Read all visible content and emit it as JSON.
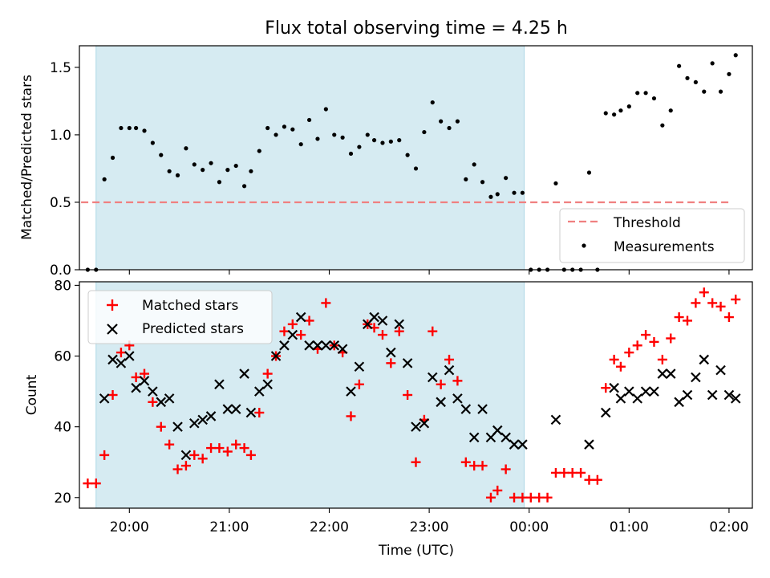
{
  "title": "Flux total observing time = 4.25 h",
  "shading": {
    "start": "19:40",
    "end": "23:57",
    "color": "#add8e6"
  },
  "x_axis": {
    "xlabel": "Time (UTC)",
    "ticks": [
      "20:00",
      "21:00",
      "22:00",
      "23:00",
      "00:00",
      "01:00",
      "02:00"
    ],
    "xlim": [
      "19:30",
      "02:14"
    ]
  },
  "chart_data": [
    {
      "type": "scatter",
      "ylabel": "Matched/Predicted stars",
      "ylim": [
        0,
        1.66
      ],
      "yticks": [
        "0.0",
        "0.5",
        "1.0",
        "1.5"
      ],
      "legend": {
        "placement": "bottom-right"
      },
      "threshold": {
        "name": "Threshold",
        "value": 0.5,
        "x_start": "19:31",
        "x_end": "02:00",
        "color": "#f08080"
      },
      "series": [
        {
          "name": "Measurements",
          "color": "#000000",
          "points": [
            [
              "19:35",
              0.0
            ],
            [
              "19:40",
              0.0
            ],
            [
              "19:45",
              0.67
            ],
            [
              "19:50",
              0.83
            ],
            [
              "19:55",
              1.05
            ],
            [
              "20:00",
              1.05
            ],
            [
              "20:04",
              1.05
            ],
            [
              "20:09",
              1.03
            ],
            [
              "20:14",
              0.94
            ],
            [
              "20:19",
              0.85
            ],
            [
              "20:24",
              0.73
            ],
            [
              "20:29",
              0.7
            ],
            [
              "20:34",
              0.9
            ],
            [
              "20:39",
              0.78
            ],
            [
              "20:44",
              0.74
            ],
            [
              "20:49",
              0.79
            ],
            [
              "20:54",
              0.65
            ],
            [
              "20:59",
              0.74
            ],
            [
              "21:04",
              0.77
            ],
            [
              "21:09",
              0.62
            ],
            [
              "21:13",
              0.73
            ],
            [
              "21:18",
              0.88
            ],
            [
              "21:23",
              1.05
            ],
            [
              "21:28",
              1.0
            ],
            [
              "21:33",
              1.06
            ],
            [
              "21:38",
              1.04
            ],
            [
              "21:43",
              0.93
            ],
            [
              "21:48",
              1.11
            ],
            [
              "21:53",
              0.97
            ],
            [
              "21:58",
              1.19
            ],
            [
              "22:03",
              1.0
            ],
            [
              "22:08",
              0.98
            ],
            [
              "22:13",
              0.86
            ],
            [
              "22:18",
              0.91
            ],
            [
              "22:23",
              1.0
            ],
            [
              "22:27",
              0.96
            ],
            [
              "22:32",
              0.94
            ],
            [
              "22:37",
              0.95
            ],
            [
              "22:42",
              0.96
            ],
            [
              "22:47",
              0.85
            ],
            [
              "22:52",
              0.75
            ],
            [
              "22:57",
              1.02
            ],
            [
              "23:02",
              1.24
            ],
            [
              "23:07",
              1.1
            ],
            [
              "23:12",
              1.05
            ],
            [
              "23:17",
              1.1
            ],
            [
              "23:22",
              0.67
            ],
            [
              "23:27",
              0.78
            ],
            [
              "23:32",
              0.65
            ],
            [
              "23:37",
              0.54
            ],
            [
              "23:41",
              0.56
            ],
            [
              "23:46",
              0.68
            ],
            [
              "23:51",
              0.57
            ],
            [
              "23:56",
              0.57
            ],
            [
              "00:01",
              0.0
            ],
            [
              "00:06",
              0.0
            ],
            [
              "00:11",
              0.0
            ],
            [
              "00:16",
              0.64
            ],
            [
              "00:21",
              0.0
            ],
            [
              "00:26",
              0.0
            ],
            [
              "00:31",
              0.0
            ],
            [
              "00:36",
              0.72
            ],
            [
              "00:41",
              0.0
            ],
            [
              "00:46",
              1.16
            ],
            [
              "00:51",
              1.15
            ],
            [
              "00:55",
              1.18
            ],
            [
              "01:00",
              1.21
            ],
            [
              "01:05",
              1.31
            ],
            [
              "01:10",
              1.31
            ],
            [
              "01:15",
              1.27
            ],
            [
              "01:20",
              1.07
            ],
            [
              "01:25",
              1.18
            ],
            [
              "01:30",
              1.51
            ],
            [
              "01:35",
              1.42
            ],
            [
              "01:40",
              1.39
            ],
            [
              "01:45",
              1.32
            ],
            [
              "01:50",
              1.53
            ],
            [
              "01:55",
              1.32
            ],
            [
              "02:00",
              1.45
            ],
            [
              "02:04",
              1.59
            ]
          ]
        }
      ]
    },
    {
      "type": "scatter",
      "ylabel": "Count",
      "ylim": [
        17,
        81
      ],
      "yticks": [
        "20",
        "40",
        "60",
        "80"
      ],
      "legend": {
        "placement": "top-left"
      },
      "series": [
        {
          "name": "Matched stars",
          "marker": "plus",
          "color": "#ff0000",
          "points": [
            [
              "19:35",
              24
            ],
            [
              "19:40",
              24
            ],
            [
              "19:45",
              32
            ],
            [
              "19:50",
              49
            ],
            [
              "19:55",
              61
            ],
            [
              "20:00",
              63
            ],
            [
              "20:04",
              54
            ],
            [
              "20:09",
              55
            ],
            [
              "20:14",
              47
            ],
            [
              "20:19",
              40
            ],
            [
              "20:24",
              35
            ],
            [
              "20:29",
              28
            ],
            [
              "20:34",
              29
            ],
            [
              "20:39",
              32
            ],
            [
              "20:44",
              31
            ],
            [
              "20:49",
              34
            ],
            [
              "20:54",
              34
            ],
            [
              "20:59",
              33
            ],
            [
              "21:04",
              35
            ],
            [
              "21:09",
              34
            ],
            [
              "21:13",
              32
            ],
            [
              "21:18",
              44
            ],
            [
              "21:23",
              55
            ],
            [
              "21:28",
              60
            ],
            [
              "21:33",
              67
            ],
            [
              "21:38",
              69
            ],
            [
              "21:43",
              66
            ],
            [
              "21:48",
              70
            ],
            [
              "21:53",
              62
            ],
            [
              "21:58",
              75
            ],
            [
              "22:03",
              63
            ],
            [
              "22:08",
              61
            ],
            [
              "22:13",
              43
            ],
            [
              "22:18",
              52
            ],
            [
              "22:23",
              69
            ],
            [
              "22:27",
              68
            ],
            [
              "22:32",
              66
            ],
            [
              "22:37",
              58
            ],
            [
              "22:42",
              67
            ],
            [
              "22:47",
              49
            ],
            [
              "22:52",
              30
            ],
            [
              "22:57",
              42
            ],
            [
              "23:02",
              67
            ],
            [
              "23:07",
              52
            ],
            [
              "23:12",
              59
            ],
            [
              "23:17",
              53
            ],
            [
              "23:22",
              30
            ],
            [
              "23:27",
              29
            ],
            [
              "23:32",
              29
            ],
            [
              "23:37",
              20
            ],
            [
              "23:41",
              22
            ],
            [
              "23:46",
              28
            ],
            [
              "23:51",
              20
            ],
            [
              "23:56",
              20
            ],
            [
              "00:01",
              20
            ],
            [
              "00:06",
              20
            ],
            [
              "00:11",
              20
            ],
            [
              "00:16",
              27
            ],
            [
              "00:21",
              27
            ],
            [
              "00:26",
              27
            ],
            [
              "00:31",
              27
            ],
            [
              "00:36",
              25
            ],
            [
              "00:41",
              25
            ],
            [
              "00:46",
              51
            ],
            [
              "00:51",
              59
            ],
            [
              "00:55",
              57
            ],
            [
              "01:00",
              61
            ],
            [
              "01:05",
              63
            ],
            [
              "01:10",
              66
            ],
            [
              "01:15",
              64
            ],
            [
              "01:20",
              59
            ],
            [
              "01:25",
              65
            ],
            [
              "01:30",
              71
            ],
            [
              "01:35",
              70
            ],
            [
              "01:40",
              75
            ],
            [
              "01:45",
              78
            ],
            [
              "01:50",
              75
            ],
            [
              "01:55",
              74
            ],
            [
              "02:00",
              71
            ],
            [
              "02:04",
              76
            ]
          ]
        },
        {
          "name": "Predicted stars",
          "marker": "x",
          "color": "#000000",
          "points": [
            [
              "19:45",
              48
            ],
            [
              "19:50",
              59
            ],
            [
              "19:55",
              58
            ],
            [
              "20:00",
              60
            ],
            [
              "20:04",
              51
            ],
            [
              "20:09",
              53
            ],
            [
              "20:14",
              50
            ],
            [
              "20:19",
              47
            ],
            [
              "20:24",
              48
            ],
            [
              "20:29",
              40
            ],
            [
              "20:34",
              32
            ],
            [
              "20:39",
              41
            ],
            [
              "20:44",
              42
            ],
            [
              "20:49",
              43
            ],
            [
              "20:54",
              52
            ],
            [
              "20:59",
              45
            ],
            [
              "21:04",
              45
            ],
            [
              "21:09",
              55
            ],
            [
              "21:13",
              44
            ],
            [
              "21:18",
              50
            ],
            [
              "21:23",
              52
            ],
            [
              "21:28",
              60
            ],
            [
              "21:33",
              63
            ],
            [
              "21:38",
              66
            ],
            [
              "21:43",
              71
            ],
            [
              "21:48",
              63
            ],
            [
              "21:53",
              63
            ],
            [
              "21:58",
              63
            ],
            [
              "22:03",
              63
            ],
            [
              "22:08",
              62
            ],
            [
              "22:13",
              50
            ],
            [
              "22:18",
              57
            ],
            [
              "22:23",
              69
            ],
            [
              "22:27",
              71
            ],
            [
              "22:32",
              70
            ],
            [
              "22:37",
              61
            ],
            [
              "22:42",
              69
            ],
            [
              "22:47",
              58
            ],
            [
              "22:52",
              40
            ],
            [
              "22:57",
              41
            ],
            [
              "23:02",
              54
            ],
            [
              "23:07",
              47
            ],
            [
              "23:12",
              56
            ],
            [
              "23:17",
              48
            ],
            [
              "23:22",
              45
            ],
            [
              "23:27",
              37
            ],
            [
              "23:32",
              45
            ],
            [
              "23:37",
              37
            ],
            [
              "23:41",
              39
            ],
            [
              "23:46",
              37
            ],
            [
              "23:51",
              35
            ],
            [
              "23:56",
              35
            ],
            [
              "00:16",
              42
            ],
            [
              "00:36",
              35
            ],
            [
              "00:46",
              44
            ],
            [
              "00:51",
              51
            ],
            [
              "00:55",
              48
            ],
            [
              "01:00",
              50
            ],
            [
              "01:05",
              48
            ],
            [
              "01:10",
              50
            ],
            [
              "01:15",
              50
            ],
            [
              "01:20",
              55
            ],
            [
              "01:25",
              55
            ],
            [
              "01:30",
              47
            ],
            [
              "01:35",
              49
            ],
            [
              "01:40",
              54
            ],
            [
              "01:45",
              59
            ],
            [
              "01:50",
              49
            ],
            [
              "01:55",
              56
            ],
            [
              "02:00",
              49
            ],
            [
              "02:04",
              48
            ]
          ]
        }
      ]
    }
  ]
}
